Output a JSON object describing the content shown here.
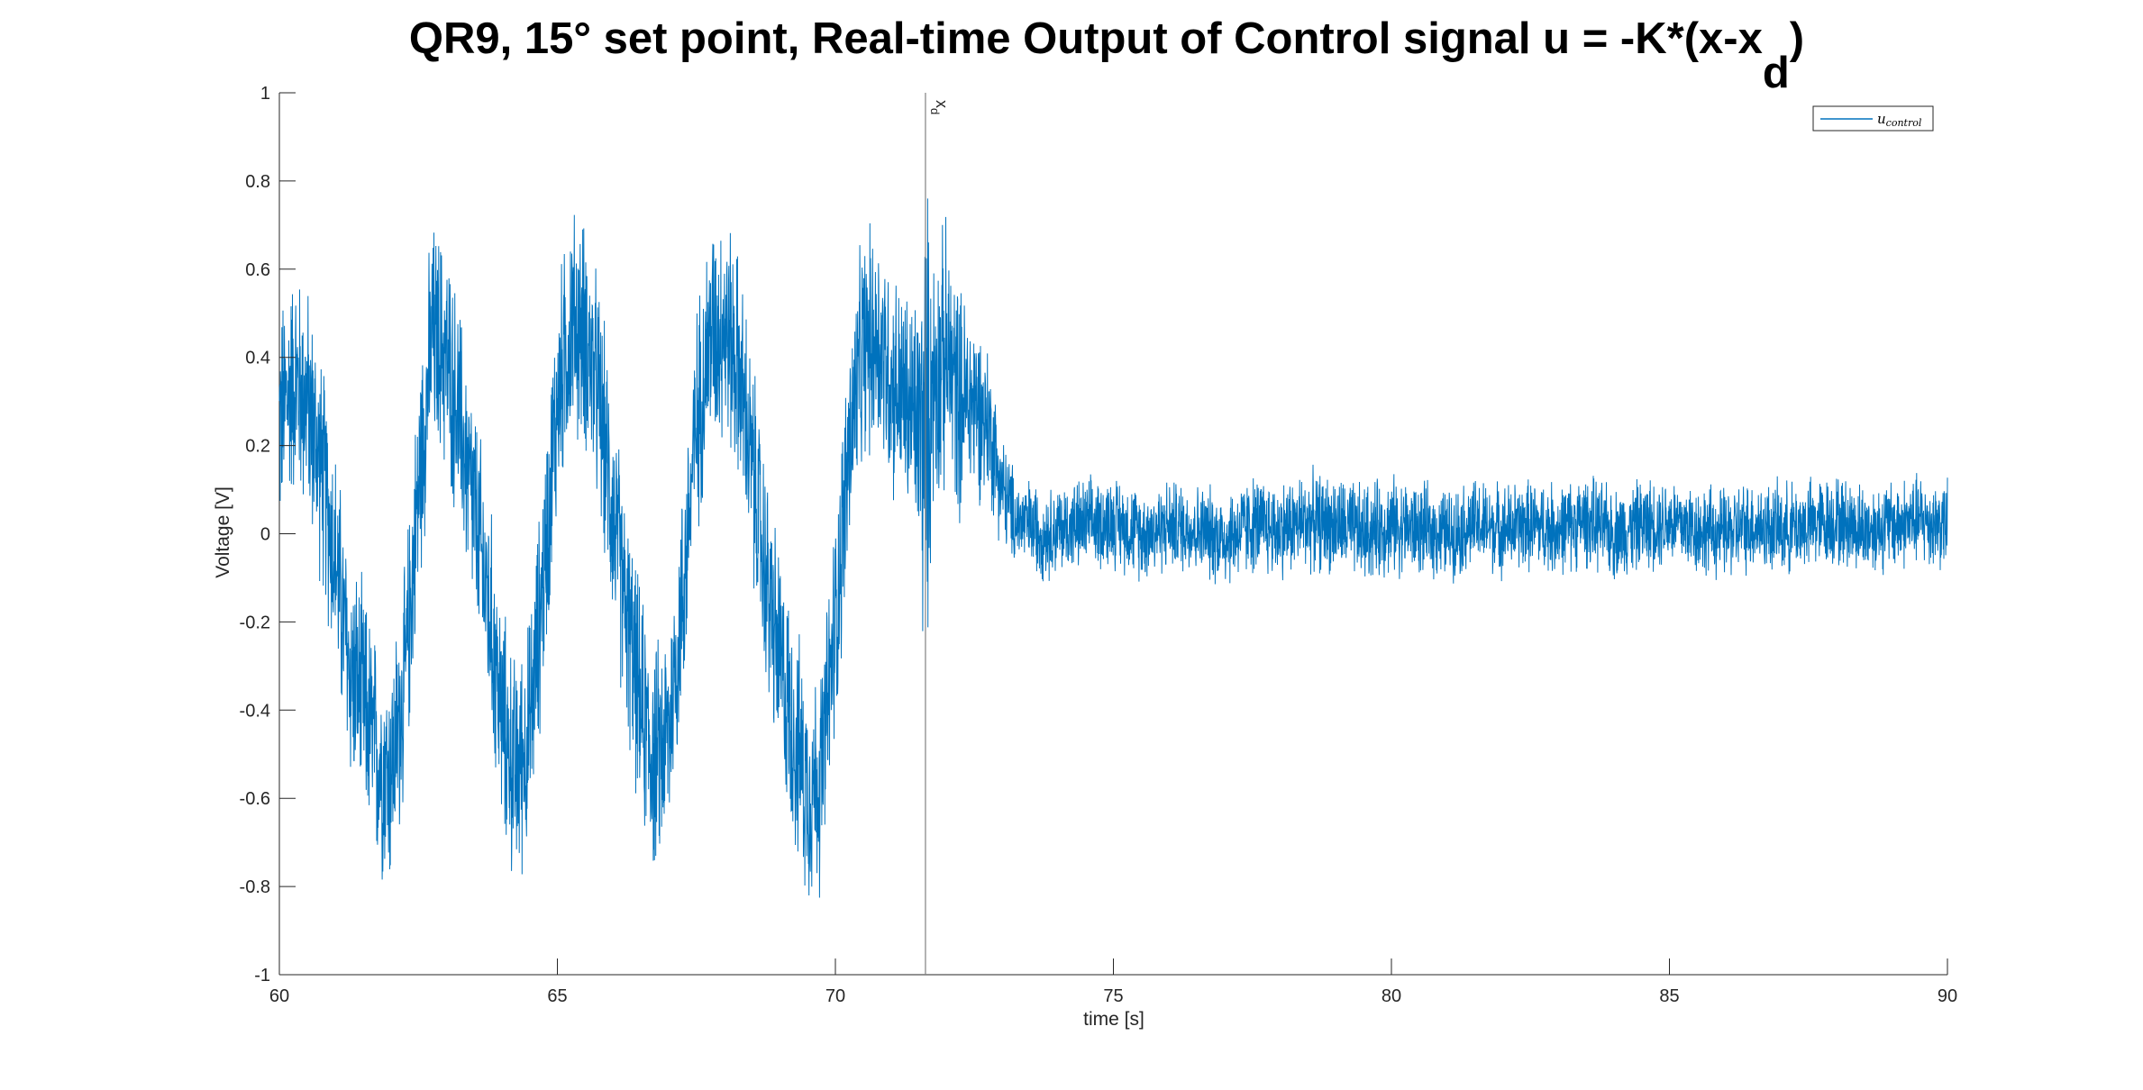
{
  "chart_data": {
    "type": "line",
    "title_main": "QR9, 15° set point, Real-time Output of Control signal u = -K*(x-x",
    "title_sub": "d",
    "title_close": ")",
    "xlabel": "time [s]",
    "ylabel": "Voltage [V]",
    "xlim": [
      60,
      90
    ],
    "ylim": [
      -1,
      1
    ],
    "x_ticks": [
      60,
      65,
      70,
      75,
      80,
      85,
      90
    ],
    "y_ticks": [
      -1,
      -0.8,
      -0.6,
      -0.4,
      -0.2,
      0,
      0.2,
      0.4,
      0.6,
      0.8,
      1
    ],
    "x_tick_labels": [
      "60",
      "65",
      "70",
      "75",
      "80",
      "85",
      "90"
    ],
    "y_tick_labels": [
      "-1",
      "-0.8",
      "-0.6",
      "-0.4",
      "-0.2",
      "0",
      "0.2",
      "0.4",
      "0.6",
      "0.8",
      "1"
    ],
    "grid": false,
    "legend_position": "top-right",
    "line_color": "#0072BD",
    "series": [
      {
        "name": "u_control",
        "legend_main": "u",
        "legend_sub": "control",
        "x": [
          60.0,
          60.25,
          60.5,
          60.75,
          61.0,
          61.25,
          61.5,
          61.75,
          62.0,
          62.25,
          62.5,
          62.75,
          63.0,
          63.25,
          63.5,
          63.75,
          64.0,
          64.25,
          64.5,
          64.75,
          65.0,
          65.25,
          65.5,
          65.75,
          66.0,
          66.25,
          66.5,
          66.75,
          67.0,
          67.25,
          67.5,
          67.75,
          68.0,
          68.25,
          68.5,
          68.75,
          69.0,
          69.25,
          69.5,
          69.75,
          70.0,
          70.25,
          70.5,
          70.75,
          71.0,
          71.25,
          71.5,
          71.62,
          71.75,
          72.0,
          72.25,
          72.5,
          72.75,
          73.0,
          73.25,
          73.5,
          73.75,
          74.0,
          74.5,
          75.0,
          75.5,
          76.0,
          76.5,
          77.0,
          77.5,
          78.0,
          78.5,
          79.0,
          79.5,
          80.0,
          80.5,
          81.0,
          81.5,
          82.0,
          82.5,
          83.0,
          83.5,
          84.0,
          84.5,
          85.0,
          85.5,
          86.0,
          86.5,
          87.0,
          87.5,
          88.0,
          88.5,
          89.0,
          89.5,
          90.0
        ],
        "y": [
          0.25,
          0.35,
          0.3,
          0.15,
          -0.05,
          -0.3,
          -0.38,
          -0.5,
          -0.55,
          -0.35,
          0.1,
          0.45,
          0.4,
          0.25,
          0.05,
          -0.15,
          -0.42,
          -0.55,
          -0.45,
          -0.1,
          0.3,
          0.48,
          0.45,
          0.3,
          0.05,
          -0.2,
          -0.4,
          -0.52,
          -0.45,
          -0.15,
          0.25,
          0.45,
          0.48,
          0.38,
          0.15,
          -0.1,
          -0.3,
          -0.45,
          -0.58,
          -0.55,
          -0.2,
          0.2,
          0.42,
          0.45,
          0.35,
          0.3,
          0.25,
          0.2,
          0.35,
          0.4,
          0.3,
          0.3,
          0.25,
          0.1,
          0.03,
          0.02,
          0.0,
          0.01,
          0.02,
          0.03,
          0.0,
          0.02,
          0.01,
          -0.01,
          0.02,
          0.01,
          0.03,
          0.02,
          0.0,
          0.02,
          0.01,
          0.0,
          0.02,
          0.01,
          0.02,
          0.01,
          0.03,
          0.0,
          0.02,
          0.03,
          0.01,
          0.0,
          0.02,
          0.01,
          0.02,
          0.03,
          0.01,
          0.02,
          0.03,
          0.02
        ],
        "noise_amplitude": [
          0.3,
          0.3,
          0.3,
          0.3,
          0.3,
          0.3,
          0.3,
          0.3,
          0.3,
          0.3,
          0.3,
          0.3,
          0.3,
          0.3,
          0.3,
          0.3,
          0.3,
          0.3,
          0.3,
          0.3,
          0.3,
          0.3,
          0.3,
          0.3,
          0.3,
          0.3,
          0.3,
          0.3,
          0.3,
          0.3,
          0.3,
          0.3,
          0.3,
          0.3,
          0.3,
          0.3,
          0.3,
          0.3,
          0.3,
          0.3,
          0.3,
          0.3,
          0.3,
          0.3,
          0.3,
          0.3,
          0.35,
          0.7,
          0.35,
          0.35,
          0.3,
          0.25,
          0.2,
          0.15,
          0.12,
          0.12,
          0.12,
          0.12,
          0.12,
          0.12,
          0.12,
          0.12,
          0.12,
          0.13,
          0.13,
          0.13,
          0.13,
          0.13,
          0.13,
          0.13,
          0.12,
          0.12,
          0.12,
          0.12,
          0.12,
          0.12,
          0.12,
          0.12,
          0.12,
          0.12,
          0.12,
          0.12,
          0.12,
          0.12,
          0.12,
          0.12,
          0.12,
          0.12,
          0.12,
          0.12
        ]
      }
    ],
    "annotations": [
      {
        "type": "vline",
        "x": 71.62,
        "label": "x",
        "label_sub": "d",
        "color": "#808080"
      }
    ]
  }
}
